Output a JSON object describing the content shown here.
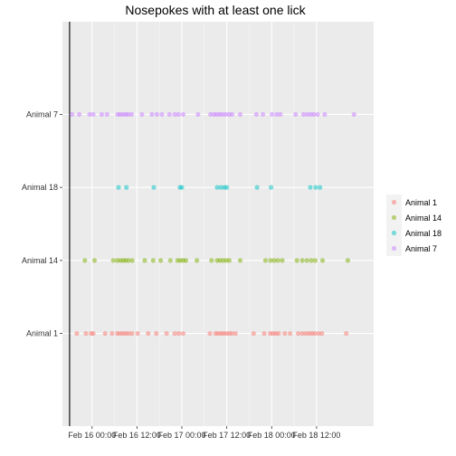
{
  "chart_data": {
    "type": "scatter",
    "title": "Nosepokes with at least one lick",
    "xlabel": "",
    "ylabel": "",
    "x_axis": {
      "type": "datetime",
      "ticks": [
        {
          "value": "2024-02-16T00:00",
          "label": "Feb 16 00:00"
        },
        {
          "value": "2024-02-16T12:00",
          "label": "Feb 16 12:00"
        },
        {
          "value": "2024-02-17T00:00",
          "label": "Feb 17 00:00"
        },
        {
          "value": "2024-02-17T12:00",
          "label": "Feb 17 12:00"
        },
        {
          "value": "2024-02-18T00:00",
          "label": "Feb 18 00:00"
        },
        {
          "value": "2024-02-18T12:00",
          "label": "Feb 18 12:00"
        }
      ],
      "range": [
        "2024-02-15T16:05",
        "2024-02-19T03:15"
      ],
      "vline": "2024-02-15T18:00"
    },
    "y_axis": {
      "type": "categorical",
      "categories": [
        "Animal 1",
        "Animal 14",
        "Animal 18",
        "Animal 7"
      ]
    },
    "grid": true,
    "legend": {
      "position": "right",
      "entries": [
        "Animal 1",
        "Animal 14",
        "Animal 18",
        "Animal 7"
      ]
    },
    "colors": {
      "Animal 1": "#F8766D",
      "Animal 14": "#7CAE00",
      "Animal 18": "#00BFC4",
      "Animal 7": "#C77CFF"
    },
    "series": [
      {
        "name": "Animal 1",
        "x": [
          "2024-02-15T19:55",
          "2024-02-15T22:20",
          "2024-02-15T23:45",
          "2024-02-16T00:20",
          "2024-02-16T03:30",
          "2024-02-16T05:20",
          "2024-02-16T06:45",
          "2024-02-16T07:30",
          "2024-02-16T08:15",
          "2024-02-16T09:00",
          "2024-02-16T09:45",
          "2024-02-16T10:40",
          "2024-02-16T12:10",
          "2024-02-16T15:00",
          "2024-02-16T17:10",
          "2024-02-16T19:55",
          "2024-02-16T22:05",
          "2024-02-16T23:10",
          "2024-02-17T00:20",
          "2024-02-17T07:30",
          "2024-02-17T09:00",
          "2024-02-17T09:40",
          "2024-02-17T10:25",
          "2024-02-17T11:05",
          "2024-02-17T11:50",
          "2024-02-17T12:35",
          "2024-02-17T13:20",
          "2024-02-17T14:20",
          "2024-02-17T19:10",
          "2024-02-17T22:00",
          "2024-02-17T23:35",
          "2024-02-18T00:20",
          "2024-02-18T01:05",
          "2024-02-18T01:50",
          "2024-02-18T03:30",
          "2024-02-18T04:55",
          "2024-02-18T07:05",
          "2024-02-18T08:10",
          "2024-02-18T09:05",
          "2024-02-18T10:00",
          "2024-02-18T10:45",
          "2024-02-18T11:30",
          "2024-02-18T12:30",
          "2024-02-18T13:25",
          "2024-02-18T19:55"
        ]
      },
      {
        "name": "Animal 14",
        "x": [
          "2024-02-15T22:05",
          "2024-02-16T00:40",
          "2024-02-16T05:40",
          "2024-02-16T06:45",
          "2024-02-16T07:35",
          "2024-02-16T08:20",
          "2024-02-16T09:00",
          "2024-02-16T09:45",
          "2024-02-16T10:45",
          "2024-02-16T14:05",
          "2024-02-16T16:20",
          "2024-02-16T18:20",
          "2024-02-16T20:55",
          "2024-02-16T22:50",
          "2024-02-16T23:35",
          "2024-02-17T00:20",
          "2024-02-17T01:05",
          "2024-02-17T04:00",
          "2024-02-17T07:55",
          "2024-02-17T09:25",
          "2024-02-17T10:10",
          "2024-02-17T11:00",
          "2024-02-17T11:50",
          "2024-02-17T12:40",
          "2024-02-17T15:35",
          "2024-02-17T22:20",
          "2024-02-17T23:40",
          "2024-02-18T00:40",
          "2024-02-18T01:40",
          "2024-02-18T02:50",
          "2024-02-18T06:45",
          "2024-02-18T08:10",
          "2024-02-18T09:25",
          "2024-02-18T10:35",
          "2024-02-18T11:40",
          "2024-02-18T13:35",
          "2024-02-18T20:20"
        ]
      },
      {
        "name": "Animal 18",
        "x": [
          "2024-02-16T07:05",
          "2024-02-16T09:10",
          "2024-02-16T16:30",
          "2024-02-16T23:30",
          "2024-02-17T00:00",
          "2024-02-17T09:25",
          "2024-02-17T10:25",
          "2024-02-17T11:20",
          "2024-02-17T12:00",
          "2024-02-17T20:05",
          "2024-02-17T23:50",
          "2024-02-18T10:20",
          "2024-02-18T11:45",
          "2024-02-18T12:55"
        ]
      },
      {
        "name": "Animal 7",
        "x": [
          "2024-02-15T18:40",
          "2024-02-15T20:35",
          "2024-02-15T23:20",
          "2024-02-16T00:20",
          "2024-02-16T02:35",
          "2024-02-16T04:00",
          "2024-02-16T06:50",
          "2024-02-16T07:30",
          "2024-02-16T08:15",
          "2024-02-16T09:00",
          "2024-02-16T09:40",
          "2024-02-16T10:35",
          "2024-02-16T13:20",
          "2024-02-16T16:00",
          "2024-02-16T17:20",
          "2024-02-16T18:40",
          "2024-02-16T20:40",
          "2024-02-16T22:05",
          "2024-02-16T23:05",
          "2024-02-17T00:20",
          "2024-02-17T04:20",
          "2024-02-17T07:40",
          "2024-02-17T08:35",
          "2024-02-17T09:20",
          "2024-02-17T10:05",
          "2024-02-17T10:50",
          "2024-02-17T11:40",
          "2024-02-17T12:35",
          "2024-02-17T13:25",
          "2024-02-17T15:35",
          "2024-02-17T19:55",
          "2024-02-17T21:40",
          "2024-02-18T00:05",
          "2024-02-18T01:20",
          "2024-02-18T02:20",
          "2024-02-18T06:25",
          "2024-02-18T08:30",
          "2024-02-18T09:30",
          "2024-02-18T10:25",
          "2024-02-18T11:15",
          "2024-02-18T12:15",
          "2024-02-18T14:10",
          "2024-02-18T22:00"
        ]
      }
    ]
  }
}
